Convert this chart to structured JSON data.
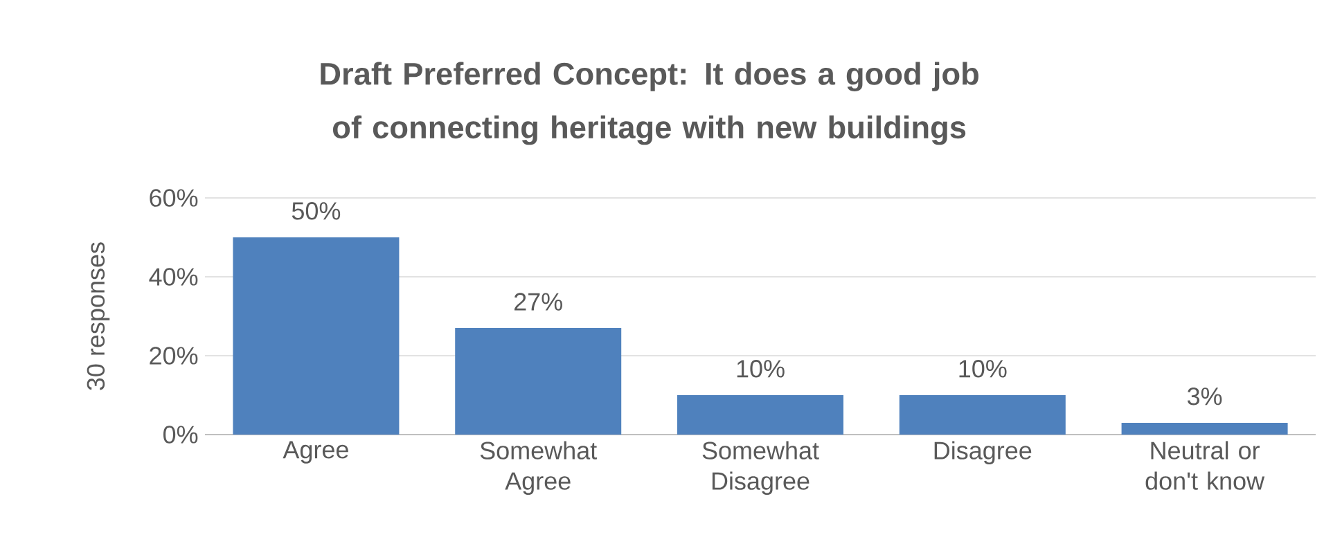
{
  "chart_data": {
    "type": "bar",
    "title": "Draft Preferred Concept: It does a good job of connecting heritage with new buildings",
    "ylabel": "30 responses",
    "categories": [
      "Agree",
      "Somewhat Agree",
      "Somewhat Disagree",
      "Disagree",
      "Neutral or don't know"
    ],
    "values": [
      50,
      27,
      10,
      10,
      3
    ],
    "value_labels": [
      "50%",
      "27%",
      "10%",
      "10%",
      "3%"
    ],
    "color": "#4f81bd",
    "ylim": [
      0,
      60
    ],
    "yticks": [
      {
        "value": 0,
        "label": "0%"
      },
      {
        "value": 20,
        "label": "20%"
      },
      {
        "value": 40,
        "label": "40%"
      },
      {
        "value": 60,
        "label": "60%"
      }
    ],
    "grid": "y"
  }
}
